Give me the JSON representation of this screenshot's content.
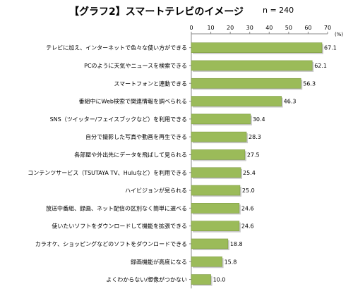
{
  "chart_data": {
    "type": "bar",
    "orientation": "horizontal",
    "title": "【グラフ2】スマートテレビのイメージ",
    "sample_size": "n = 240",
    "unit": "(%)",
    "xlim": [
      0,
      70
    ],
    "ticks": [
      "0",
      "10",
      "20",
      "30",
      "40",
      "50",
      "60",
      "70"
    ],
    "bar_color": "#9bbb59",
    "categories": [
      "テレビに加え、インターネットで色々な使い方ができる",
      "PCのように天気やニュースを検索できる",
      "スマートフォンと連動できる",
      "番組中にWeb検索で関連情報を調べられる",
      "SNS（ツイッター/フェイスブックなど）を利用できる",
      "自分で撮影した写真や動画を再生できる",
      "各部屋や外出先にデータを飛ばして見られる",
      "コンテンツサービス（TSUTAYA TV、Huluなど）を利用できる",
      "ハイビジョンが見られる",
      "放送中番組、録画、ネット配信の区別なく簡単に選べる",
      "使いたいソフトをダウンロードして機能を拡張できる",
      "カラオケ、ショッピングなどのソフトをダウンロードできる",
      "録画機能が高度になる",
      "よくわからない/想像がつかない"
    ],
    "values": [
      67.1,
      62.1,
      56.3,
      46.3,
      30.4,
      28.3,
      27.5,
      25.4,
      25.0,
      24.6,
      24.6,
      18.8,
      15.8,
      10.0
    ],
    "value_labels": [
      "67.1",
      "62.1",
      "56.3",
      "46.3",
      "30.4",
      "28.3",
      "27.5",
      "25.4",
      "25.0",
      "24.6",
      "24.6",
      "18.8",
      "15.8",
      "10.0"
    ],
    "grid": false,
    "legend": "none"
  }
}
